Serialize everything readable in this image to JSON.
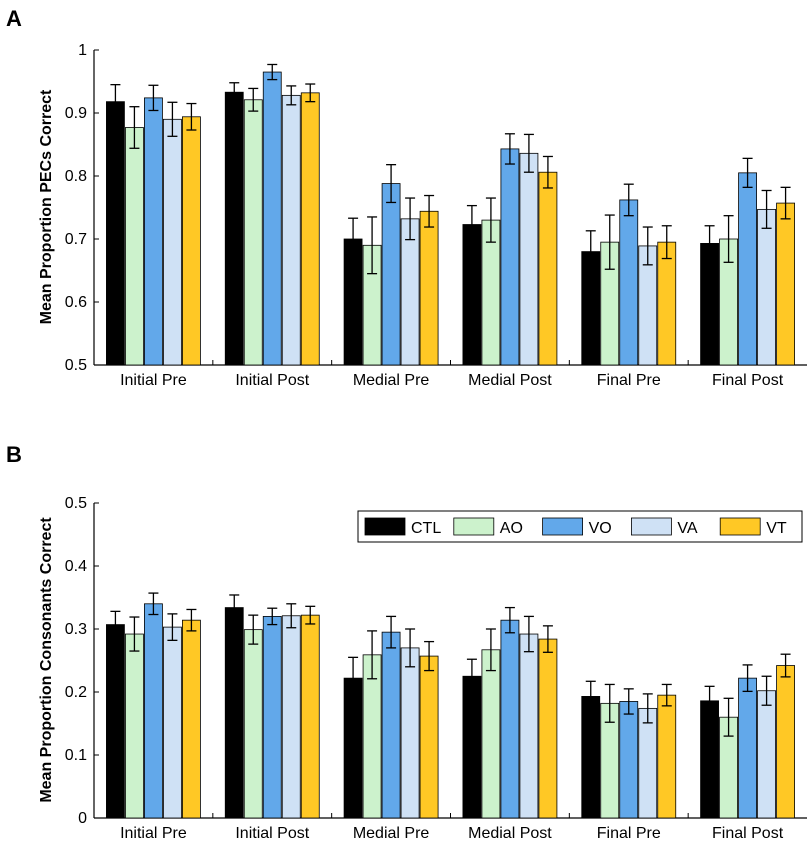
{
  "colors": {
    "CTL": "#000000",
    "AO": "#ccf2cc",
    "VO": "#62a8ea",
    "VA": "#cfe1f5",
    "VT": "#ffc825"
  },
  "legend": [
    "CTL",
    "AO",
    "VO",
    "VA",
    "VT"
  ],
  "chart_data": [
    {
      "panel": "A",
      "type": "bar",
      "ylabel": "Mean Proportion PECs Correct",
      "ylim": [
        0.5,
        1
      ],
      "yticks": [
        "0.5",
        "0.6",
        "0.7",
        "0.8",
        "0.9",
        "1"
      ],
      "categories": [
        "Initial Pre",
        "Initial Post",
        "Medial Pre",
        "Medial Post",
        "Final Pre",
        "Final Post"
      ],
      "series": [
        {
          "name": "CTL",
          "values": [
            0.918,
            0.933,
            0.7,
            0.723,
            0.68,
            0.693
          ],
          "errors": [
            0.027,
            0.015,
            0.033,
            0.03,
            0.033,
            0.028
          ]
        },
        {
          "name": "AO",
          "values": [
            0.877,
            0.921,
            0.69,
            0.73,
            0.695,
            0.7
          ],
          "errors": [
            0.033,
            0.018,
            0.045,
            0.035,
            0.043,
            0.037
          ]
        },
        {
          "name": "VO",
          "values": [
            0.924,
            0.965,
            0.788,
            0.843,
            0.762,
            0.805
          ],
          "errors": [
            0.02,
            0.012,
            0.03,
            0.024,
            0.025,
            0.023
          ]
        },
        {
          "name": "VA",
          "values": [
            0.89,
            0.928,
            0.732,
            0.836,
            0.689,
            0.747
          ],
          "errors": [
            0.027,
            0.015,
            0.033,
            0.03,
            0.03,
            0.03
          ]
        },
        {
          "name": "VT",
          "values": [
            0.894,
            0.932,
            0.744,
            0.806,
            0.695,
            0.757
          ],
          "errors": [
            0.021,
            0.014,
            0.025,
            0.025,
            0.026,
            0.025
          ]
        }
      ]
    },
    {
      "panel": "B",
      "type": "bar",
      "ylabel": "Mean Proportion Consonants Correct",
      "ylim": [
        0,
        0.5
      ],
      "yticks": [
        "0",
        "0.1",
        "0.2",
        "0.3",
        "0.4",
        "0.5"
      ],
      "categories": [
        "Initial Pre",
        "Initial Post",
        "Medial Pre",
        "Medial Post",
        "Final Pre",
        "Final Post"
      ],
      "series": [
        {
          "name": "CTL",
          "values": [
            0.307,
            0.334,
            0.222,
            0.225,
            0.193,
            0.186
          ],
          "errors": [
            0.021,
            0.02,
            0.033,
            0.027,
            0.024,
            0.023
          ]
        },
        {
          "name": "AO",
          "values": [
            0.292,
            0.299,
            0.259,
            0.267,
            0.182,
            0.16
          ],
          "errors": [
            0.027,
            0.023,
            0.038,
            0.033,
            0.03,
            0.03
          ]
        },
        {
          "name": "VO",
          "values": [
            0.34,
            0.32,
            0.295,
            0.314,
            0.185,
            0.222
          ],
          "errors": [
            0.017,
            0.013,
            0.025,
            0.02,
            0.02,
            0.021
          ]
        },
        {
          "name": "VA",
          "values": [
            0.303,
            0.321,
            0.27,
            0.292,
            0.174,
            0.202
          ],
          "errors": [
            0.021,
            0.019,
            0.03,
            0.028,
            0.023,
            0.023
          ]
        },
        {
          "name": "VT",
          "values": [
            0.314,
            0.322,
            0.257,
            0.284,
            0.195,
            0.242
          ],
          "errors": [
            0.017,
            0.014,
            0.023,
            0.021,
            0.017,
            0.018
          ]
        }
      ]
    }
  ]
}
